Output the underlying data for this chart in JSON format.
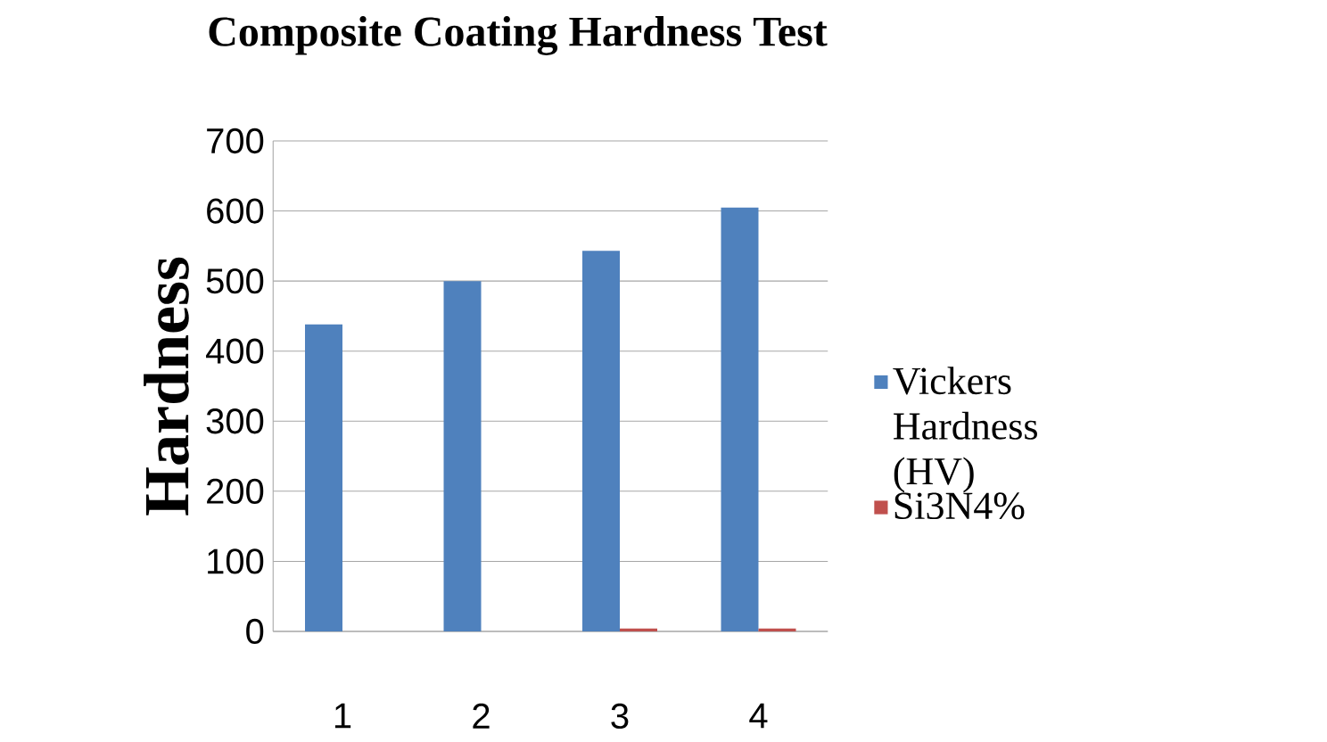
{
  "chart_data": {
    "type": "bar",
    "title": "Composite Coating Hardness Test",
    "ylabel": "Hardness",
    "categories": [
      "1",
      "2",
      "3",
      "4"
    ],
    "series": [
      {
        "name": "Vickers Hardness (HV)",
        "color": "#4f81bd",
        "values": [
          438,
          500,
          543,
          605
        ]
      },
      {
        "name": "Si3N4%",
        "color": "#c0504d",
        "values": [
          0,
          0,
          4,
          4
        ]
      }
    ],
    "ylim": [
      0,
      700
    ],
    "yticks": [
      0,
      100,
      200,
      300,
      400,
      500,
      600,
      700
    ],
    "grid": "y",
    "legend": "right"
  }
}
